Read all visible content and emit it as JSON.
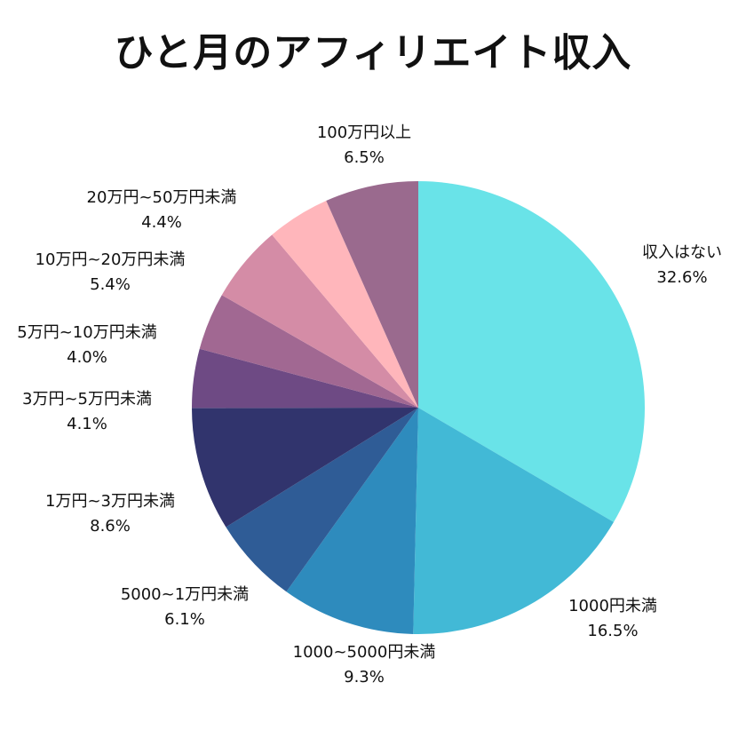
{
  "chart_data": {
    "type": "pie",
    "title": "ひと月のアフィリエイト収入",
    "start": "12 o'clock",
    "direction": "clockwise",
    "slices": [
      {
        "label": "収入はない",
        "value": 32.6,
        "value_label": "32.6%",
        "color": "#69E3E8"
      },
      {
        "label": "1000円未満",
        "value": 16.5,
        "value_label": "16.5%",
        "color": "#42B9D6"
      },
      {
        "label": "1000~5000円未満",
        "value": 9.3,
        "value_label": "9.3%",
        "color": "#2E8BBD"
      },
      {
        "label": "5000~1万円未満",
        "value": 6.1,
        "value_label": "6.1%",
        "color": "#2F5C96"
      },
      {
        "label": "1万円~3万円未満",
        "value": 8.6,
        "value_label": "8.6%",
        "color": "#31346D"
      },
      {
        "label": "3万円~5万円未満",
        "value": 4.1,
        "value_label": "4.1%",
        "color": "#6E4A84"
      },
      {
        "label": "5万円~10万円未満",
        "value": 4.0,
        "value_label": "4.0%",
        "color": "#A16892"
      },
      {
        "label": "10万円~20万円未満",
        "value": 5.4,
        "value_label": "5.4%",
        "color": "#D48CA6"
      },
      {
        "label": "20万円~50万円未満",
        "value": 4.4,
        "value_label": "4.4%",
        "color": "#FFB6BB"
      },
      {
        "label": "100万円以上",
        "value": 6.5,
        "value_label": "6.5%",
        "color": "#9A6A8E"
      }
    ],
    "legend": "none"
  }
}
